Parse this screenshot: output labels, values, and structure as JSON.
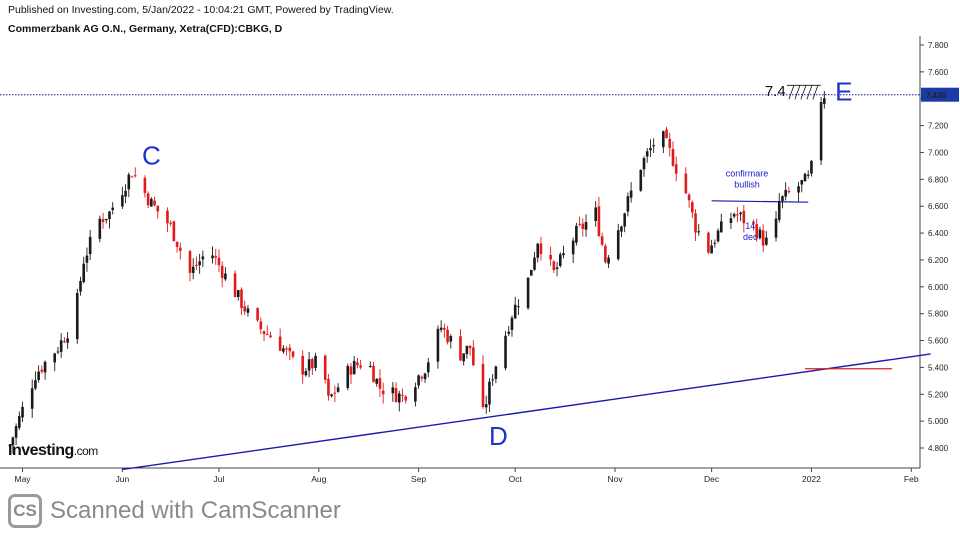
{
  "header": {
    "published": "Published on Investing.com, 5/Jan/2022 - 10:04:21 GMT, Powered by TradingView.",
    "symbol": "Commerzbank AG O.N., Germany, Xetra(CFD):CBKG, D"
  },
  "logo": {
    "main": "Investing",
    "suffix": ".com"
  },
  "footer": {
    "badge": "CS",
    "text": "Scanned with CamScanner"
  },
  "colors": {
    "up": "#1a1a1a",
    "down": "#e01b1b",
    "wave": "#1f2fd0",
    "trendline": "#1a1ab0",
    "price_line": "#1a1aa8",
    "price_tag": "#1a3aa8"
  },
  "chart_data": {
    "type": "candlestick",
    "title": "Commerzbank AG O.N., Germany, Xetra(CFD):CBKG, D",
    "ylim": [
      4.7,
      7.85
    ],
    "y_ticks": [
      "7.800",
      "7.600",
      "7.400",
      "7.200",
      "7.000",
      "6.800",
      "6.600",
      "6.400",
      "6.200",
      "6.000",
      "5.800",
      "5.600",
      "5.400",
      "5.200",
      "5.000",
      "4.800"
    ],
    "x_ticks": [
      "May",
      "Jun",
      "Jul",
      "Aug",
      "Sep",
      "Oct",
      "Nov",
      "Dec",
      "2022",
      "Feb"
    ],
    "current_price": "7.430",
    "wave_labels": [
      {
        "label": "C",
        "date": "2021-06-04",
        "price": 6.88
      },
      {
        "label": "D",
        "date": "2021-09-21",
        "price": 5.0
      },
      {
        "label": "E",
        "date": "2022-01-04",
        "price": 7.43
      }
    ],
    "trendline": {
      "from": {
        "date": "2021-06-01",
        "price": 4.64
      },
      "to": {
        "date": "2022-02-07",
        "price": 5.5
      }
    },
    "resistance_line": {
      "from": {
        "date": "2021-12-01",
        "price": 6.64
      },
      "to": {
        "date": "2021-12-31",
        "price": 6.63
      }
    },
    "red_segment": {
      "from": {
        "date": "2021-12-30",
        "price": 5.39
      },
      "to": {
        "date": "2022-01-26",
        "price": 5.39
      }
    },
    "annotations": [
      {
        "text": "confirmare",
        "date": "2021-12-12",
        "price": 6.82
      },
      {
        "text": "bullish",
        "date": "2021-12-12",
        "price": 6.74
      },
      {
        "text": "14",
        "date": "2021-12-13",
        "price": 6.43
      },
      {
        "text": "dec",
        "date": "2021-12-13",
        "price": 6.35
      },
      {
        "text": "7.4",
        "date": "2021-12-24",
        "price": 7.42
      }
    ],
    "waypoints": [
      [
        "2021-04-27",
        4.82
      ],
      [
        "2021-05-05",
        5.35
      ],
      [
        "2021-05-12",
        5.55
      ],
      [
        "2021-05-17",
        5.75
      ],
      [
        "2021-05-20",
        6.2
      ],
      [
        "2021-05-25",
        6.5
      ],
      [
        "2021-05-28",
        6.55
      ],
      [
        "2021-06-04",
        6.86
      ],
      [
        "2021-06-10",
        6.62
      ],
      [
        "2021-06-16",
        6.45
      ],
      [
        "2021-06-22",
        6.1
      ],
      [
        "2021-06-28",
        6.28
      ],
      [
        "2021-07-05",
        6.0
      ],
      [
        "2021-07-12",
        5.72
      ],
      [
        "2021-07-19",
        5.6
      ],
      [
        "2021-07-26",
        5.38
      ],
      [
        "2021-08-02",
        5.45
      ],
      [
        "2021-08-04",
        5.15
      ],
      [
        "2021-08-11",
        5.4
      ],
      [
        "2021-08-16",
        5.45
      ],
      [
        "2021-08-20",
        5.25
      ],
      [
        "2021-08-27",
        5.18
      ],
      [
        "2021-09-03",
        5.4
      ],
      [
        "2021-09-08",
        5.7
      ],
      [
        "2021-09-14",
        5.5
      ],
      [
        "2021-09-17",
        5.55
      ],
      [
        "2021-09-21",
        5.05
      ],
      [
        "2021-09-24",
        5.35
      ],
      [
        "2021-09-30",
        5.8
      ],
      [
        "2021-10-05",
        6.05
      ],
      [
        "2021-10-08",
        6.35
      ],
      [
        "2021-10-13",
        6.1
      ],
      [
        "2021-10-20",
        6.4
      ],
      [
        "2021-10-26",
        6.55
      ],
      [
        "2021-10-29",
        6.2
      ],
      [
        "2021-11-03",
        6.5
      ],
      [
        "2021-11-09",
        6.9
      ],
      [
        "2021-11-15",
        7.15
      ],
      [
        "2021-11-19",
        6.95
      ],
      [
        "2021-11-23",
        6.7
      ],
      [
        "2021-11-26",
        6.45
      ],
      [
        "2021-11-30",
        6.28
      ],
      [
        "2021-12-03",
        6.4
      ],
      [
        "2021-12-08",
        6.55
      ],
      [
        "2021-12-14",
        6.45
      ],
      [
        "2021-12-17",
        6.35
      ],
      [
        "2021-12-20",
        6.3
      ],
      [
        "2021-12-22",
        6.63
      ],
      [
        "2021-12-28",
        6.75
      ],
      [
        "2021-12-31",
        6.8
      ],
      [
        "2022-01-03",
        7.05
      ],
      [
        "2022-01-04",
        7.4
      ],
      [
        "2022-01-05",
        7.43
      ]
    ]
  }
}
